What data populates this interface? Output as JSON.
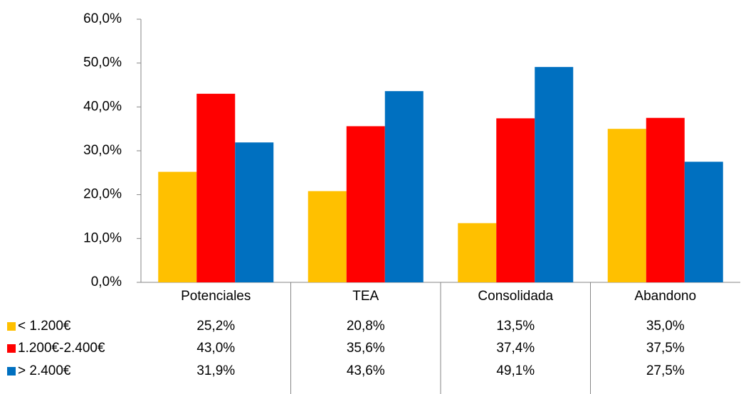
{
  "chart_data": {
    "type": "bar",
    "categories": [
      "Potenciales",
      "TEA",
      "Consolidada",
      "Abandono"
    ],
    "series": [
      {
        "name": "< 1.200€",
        "color": "#ffc000",
        "values": [
          25.2,
          20.8,
          13.5,
          35.0
        ],
        "value_labels": [
          "25,2%",
          "20,8%",
          "13,5%",
          "35,0%"
        ]
      },
      {
        "name": "1.200€-2.400€",
        "color": "#ff0000",
        "values": [
          43.0,
          35.6,
          37.4,
          37.5
        ],
        "value_labels": [
          "43,0%",
          "35,6%",
          "37,4%",
          "37,5%"
        ]
      },
      {
        "name": "> 2.400€",
        "color": "#0070c0",
        "values": [
          31.9,
          43.6,
          49.1,
          27.5
        ],
        "value_labels": [
          "31,9%",
          "43,6%",
          "49,1%",
          "27,5%"
        ]
      }
    ],
    "ylim": [
      0,
      60
    ],
    "yticks": [
      {
        "value": 0,
        "label": "0,0%"
      },
      {
        "value": 10,
        "label": "10,0%"
      },
      {
        "value": 20,
        "label": "20,0%"
      },
      {
        "value": 30,
        "label": "30,0%"
      },
      {
        "value": 40,
        "label": "40,0%"
      },
      {
        "value": 50,
        "label": "50,0%"
      },
      {
        "value": 60,
        "label": "60,0%"
      }
    ],
    "grid": false,
    "legend": "table"
  }
}
